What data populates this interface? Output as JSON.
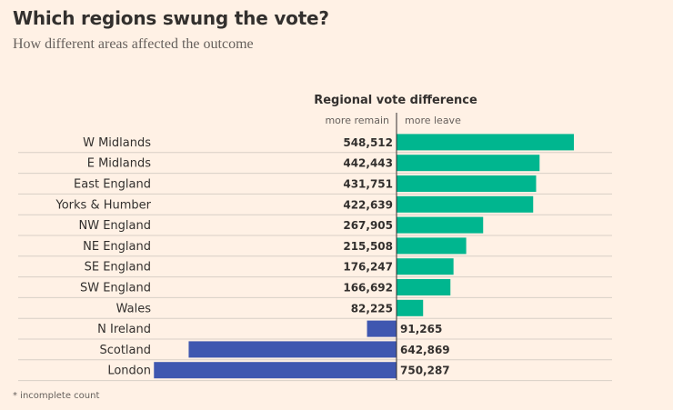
{
  "title": "Which regions swung the vote?",
  "subtitle": "How different areas affected the outcome",
  "footnote": "* incomplete count",
  "chart_data": {
    "type": "bar",
    "orientation": "horizontal-diverging",
    "header": "Regional vote difference",
    "left_label": "more remain",
    "right_label": "more leave",
    "categories": [
      "W Midlands",
      "E Midlands",
      "East England",
      "Yorks & Humber",
      "NW England",
      "NE England",
      "SE England",
      "SW England",
      "Wales",
      "N Ireland",
      "Scotland",
      "London"
    ],
    "values": [
      548512,
      442443,
      431751,
      422639,
      267905,
      215508,
      176247,
      166692,
      82225,
      -91265,
      -642869,
      -750287
    ],
    "value_labels": [
      "548,512",
      "442,443",
      "431,751",
      "422,639",
      "267,905",
      "215,508",
      "176,247",
      "166,692",
      "82,225",
      "91,265",
      "642,869",
      "750,287"
    ],
    "colors": {
      "leave": "#00b68f",
      "remain": "#3f57b0",
      "gridline": "#d8cfc6",
      "axis": "#33302e"
    },
    "grid": true,
    "legend": "none"
  }
}
